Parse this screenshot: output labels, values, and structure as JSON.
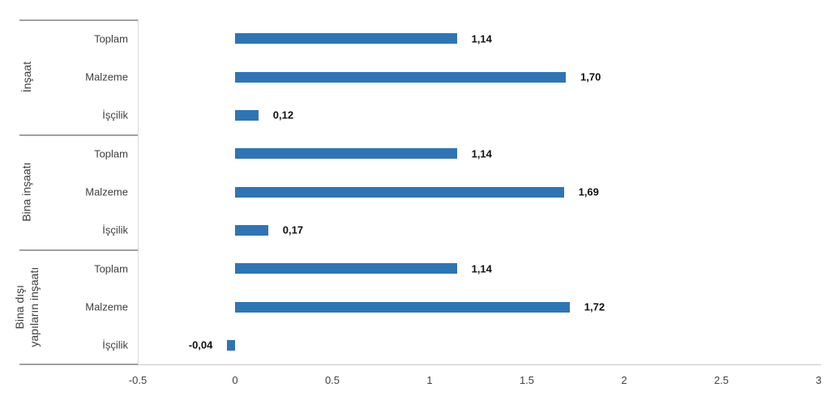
{
  "chart_data": {
    "type": "bar",
    "orientation": "horizontal",
    "title": "",
    "legend": false,
    "grid": false,
    "bar_color": "#2E75B6",
    "value_label_color": "#111111",
    "axis_text_color": "#424242",
    "xlim": [
      -0.5,
      3
    ],
    "groups": [
      {
        "label": "İnşaat",
        "label_lines": [
          "İnşaat"
        ],
        "rows": [
          {
            "label": "Toplam",
            "value": 1.14,
            "value_label": "1,14"
          },
          {
            "label": "Malzeme",
            "value": 1.7,
            "value_label": "1,70"
          },
          {
            "label": "İşçilik",
            "value": 0.12,
            "value_label": "0,12"
          }
        ]
      },
      {
        "label": "Bina inşaatı",
        "label_lines": [
          "Bina inşaatı"
        ],
        "rows": [
          {
            "label": "Toplam",
            "value": 1.14,
            "value_label": "1,14"
          },
          {
            "label": "Malzeme",
            "value": 1.69,
            "value_label": "1,69"
          },
          {
            "label": "İşçilik",
            "value": 0.17,
            "value_label": "0,17"
          }
        ]
      },
      {
        "label": "Bina dışı yapıların inşaatı",
        "label_lines": [
          "Bina dışı",
          "yapıların inşaatı"
        ],
        "rows": [
          {
            "label": "Toplam",
            "value": 1.14,
            "value_label": "1,14"
          },
          {
            "label": "Malzeme",
            "value": 1.72,
            "value_label": "1,72"
          },
          {
            "label": "İşçilik",
            "value": -0.04,
            "value_label": "-0,04"
          }
        ]
      }
    ],
    "x_axis": {
      "ticks": [
        {
          "value": -0.5,
          "label": "-0.5"
        },
        {
          "value": 0,
          "label": "0"
        },
        {
          "value": 0.5,
          "label": "0.5"
        },
        {
          "value": 1,
          "label": "1"
        },
        {
          "value": 1.5,
          "label": "1.5"
        },
        {
          "value": 2,
          "label": "2"
        },
        {
          "value": 2.5,
          "label": "2.5"
        },
        {
          "value": 3,
          "label": "3"
        }
      ]
    }
  }
}
